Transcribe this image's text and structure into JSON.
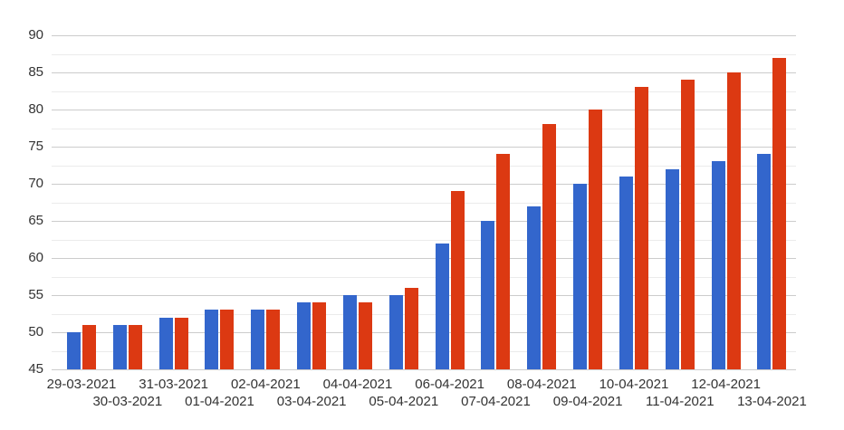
{
  "chart_data": {
    "type": "bar",
    "title": "",
    "categories": [
      "29-03-2021",
      "30-03-2021",
      "31-03-2021",
      "01-04-2021",
      "02-04-2021",
      "03-04-2021",
      "04-04-2021",
      "05-04-2021",
      "06-04-2021",
      "07-04-2021",
      "08-04-2021",
      "09-04-2021",
      "10-04-2021",
      "11-04-2021",
      "12-04-2021",
      "13-04-2021"
    ],
    "series": [
      {
        "color": "#3366cc",
        "values": [
          50,
          51,
          52,
          53,
          53,
          54,
          55,
          55,
          62,
          65,
          67,
          70,
          71,
          72,
          73,
          74
        ]
      },
      {
        "color": "#dc3912",
        "values": [
          51,
          51,
          52,
          53,
          53,
          54,
          54,
          56,
          69,
          74,
          78,
          80,
          83,
          84,
          85,
          87
        ]
      }
    ],
    "xlabel": "",
    "ylabel": "",
    "ylim": [
      45,
      90
    ],
    "y_ticks": [
      45,
      50,
      55,
      60,
      65,
      70,
      75,
      80,
      85,
      90
    ],
    "y_minor_step": 2.5,
    "grid": "on",
    "legend": "none",
    "x_label_layout": "staggered-two-rows",
    "colors": {
      "grid_major": "#cccccc",
      "grid_minor": "#ebebeb",
      "axis_text": "#333333",
      "background": "#ffffff"
    }
  }
}
